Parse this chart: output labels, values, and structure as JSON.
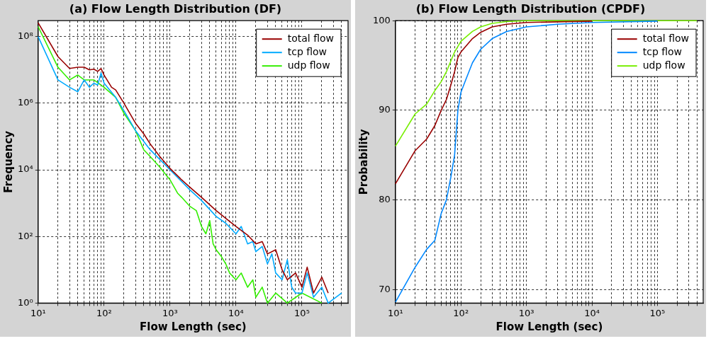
{
  "chart_data": [
    {
      "type": "line",
      "title": "(a) Flow Length Distribution (DF)",
      "xlabel": "Flow Length (sec)",
      "ylabel": "Frequency",
      "log": "xy",
      "grid": true,
      "legend": "top right",
      "marker": "none",
      "line_style": "solid",
      "xlim": [
        10,
        500000
      ],
      "ylim": [
        1,
        300000000
      ],
      "xticks": [
        {
          "value": 10,
          "label": "10¹"
        },
        {
          "value": 20,
          "label": null
        },
        {
          "value": 30,
          "label": null
        },
        {
          "value": 40,
          "label": null
        },
        {
          "value": 50,
          "label": null
        },
        {
          "value": 60,
          "label": null
        },
        {
          "value": 70,
          "label": null
        },
        {
          "value": 80,
          "label": null
        },
        {
          "value": 90,
          "label": null
        },
        {
          "value": 100,
          "label": "10²"
        },
        {
          "value": 200,
          "label": null
        },
        {
          "value": 300,
          "label": null
        },
        {
          "value": 400,
          "label": null
        },
        {
          "value": 500,
          "label": null
        },
        {
          "value": 600,
          "label": null
        },
        {
          "value": 700,
          "label": null
        },
        {
          "value": 800,
          "label": null
        },
        {
          "value": 900,
          "label": null
        },
        {
          "value": 1000,
          "label": "10³"
        },
        {
          "value": 2000,
          "label": null
        },
        {
          "value": 3000,
          "label": null
        },
        {
          "value": 4000,
          "label": null
        },
        {
          "value": 5000,
          "label": null
        },
        {
          "value": 6000,
          "label": null
        },
        {
          "value": 7000,
          "label": null
        },
        {
          "value": 8000,
          "label": null
        },
        {
          "value": 9000,
          "label": null
        },
        {
          "value": 10000,
          "label": "10⁴"
        },
        {
          "value": 20000,
          "label": null
        },
        {
          "value": 30000,
          "label": null
        },
        {
          "value": 40000,
          "label": null
        },
        {
          "value": 50000,
          "label": null
        },
        {
          "value": 60000,
          "label": null
        },
        {
          "value": 70000,
          "label": null
        },
        {
          "value": 80000,
          "label": null
        },
        {
          "value": 90000,
          "label": null
        },
        {
          "value": 100000,
          "label": "10⁵"
        },
        {
          "value": 200000,
          "label": null
        },
        {
          "value": 300000,
          "label": null
        },
        {
          "value": 400000,
          "label": null
        }
      ],
      "yticks": [
        {
          "value": 1,
          "label": "10⁰"
        },
        {
          "value": 100,
          "label": "10²"
        },
        {
          "value": 10000,
          "label": "10⁴"
        },
        {
          "value": 1000000,
          "label": "10⁶"
        },
        {
          "value": 100000000,
          "label": "10⁸"
        }
      ],
      "series": [
        {
          "name": "total flow",
          "color": "#990000",
          "x": [
            10,
            20,
            30,
            40,
            50,
            60,
            70,
            80,
            90,
            100,
            130,
            150,
            200,
            300,
            400,
            500,
            700,
            1000,
            1500,
            2000,
            3000,
            5000,
            7000,
            10000,
            15000,
            20000,
            25000,
            30000,
            40000,
            50000,
            60000,
            80000,
            100000,
            120000,
            150000,
            200000,
            250000
          ],
          "values": [
            260000000,
            25000000,
            11000000,
            12000000,
            12000000,
            10000000,
            10500000,
            9000000,
            11000000,
            7000000,
            3000000,
            2500000,
            1000000,
            250000,
            120000,
            60000,
            25000,
            11000,
            5000,
            3000,
            1500,
            600,
            350,
            200,
            110,
            60,
            70,
            30,
            40,
            10,
            5,
            8,
            3,
            12,
            2,
            6,
            2
          ]
        },
        {
          "name": "tcp flow",
          "color": "#00aaff",
          "x": [
            10,
            20,
            30,
            40,
            50,
            60,
            70,
            80,
            90,
            100,
            150,
            200,
            300,
            500,
            1000,
            2000,
            3000,
            5000,
            7000,
            10000,
            12000,
            15000,
            18000,
            20000,
            25000,
            30000,
            35000,
            40000,
            50000,
            60000,
            70000,
            80000,
            100000,
            120000,
            150000,
            200000,
            250000,
            400000
          ],
          "values": [
            100000000,
            5000000,
            3000000,
            2200000,
            5000000,
            3000000,
            4000000,
            3500000,
            8000000,
            4000000,
            1500000,
            600000,
            150000,
            40000,
            10000,
            2500,
            1200,
            400,
            250,
            120,
            200,
            60,
            70,
            35,
            50,
            15,
            30,
            8,
            5,
            20,
            3,
            2,
            2,
            8,
            1.5,
            3,
            1,
            2
          ]
        },
        {
          "name": "udp flow",
          "color": "#33ee00",
          "x": [
            10,
            20,
            30,
            40,
            50,
            70,
            100,
            150,
            200,
            300,
            400,
            500,
            700,
            1000,
            1300,
            1500,
            2000,
            2500,
            3000,
            3500,
            4000,
            4500,
            5000,
            6000,
            7000,
            8000,
            10000,
            12000,
            15000,
            18000,
            20000,
            25000,
            30000,
            40000,
            60000,
            100000,
            200000
          ],
          "values": [
            200000000,
            12000000,
            5000000,
            7000000,
            5000000,
            5000000,
            3000000,
            1500000,
            500000,
            150000,
            40000,
            25000,
            12000,
            5000,
            2000,
            1500,
            800,
            600,
            200,
            120,
            300,
            60,
            40,
            25,
            15,
            8,
            5,
            8,
            3,
            5,
            1.5,
            3,
            1,
            2,
            1,
            2,
            1
          ]
        }
      ]
    },
    {
      "type": "line",
      "title": "(b) Flow Length Distribution (CPDF)",
      "xlabel": "Flow Length (sec)",
      "ylabel": "Probability",
      "log": "x",
      "grid": true,
      "legend": "top right",
      "marker": "none",
      "line_style": "solid",
      "xlim": [
        10,
        500000
      ],
      "ylim": [
        68.5,
        100
      ],
      "xticks": [
        {
          "value": 10,
          "label": "10¹"
        },
        {
          "value": 20,
          "label": null
        },
        {
          "value": 30,
          "label": null
        },
        {
          "value": 40,
          "label": null
        },
        {
          "value": 50,
          "label": null
        },
        {
          "value": 60,
          "label": null
        },
        {
          "value": 70,
          "label": null
        },
        {
          "value": 80,
          "label": null
        },
        {
          "value": 90,
          "label": null
        },
        {
          "value": 100,
          "label": "10²"
        },
        {
          "value": 200,
          "label": null
        },
        {
          "value": 300,
          "label": null
        },
        {
          "value": 400,
          "label": null
        },
        {
          "value": 500,
          "label": null
        },
        {
          "value": 600,
          "label": null
        },
        {
          "value": 700,
          "label": null
        },
        {
          "value": 800,
          "label": null
        },
        {
          "value": 900,
          "label": null
        },
        {
          "value": 1000,
          "label": "10³"
        },
        {
          "value": 2000,
          "label": null
        },
        {
          "value": 3000,
          "label": null
        },
        {
          "value": 4000,
          "label": null
        },
        {
          "value": 5000,
          "label": null
        },
        {
          "value": 6000,
          "label": null
        },
        {
          "value": 7000,
          "label": null
        },
        {
          "value": 8000,
          "label": null
        },
        {
          "value": 9000,
          "label": null
        },
        {
          "value": 10000,
          "label": "10⁴"
        },
        {
          "value": 20000,
          "label": null
        },
        {
          "value": 30000,
          "label": null
        },
        {
          "value": 40000,
          "label": null
        },
        {
          "value": 50000,
          "label": null
        },
        {
          "value": 60000,
          "label": null
        },
        {
          "value": 70000,
          "label": null
        },
        {
          "value": 80000,
          "label": null
        },
        {
          "value": 90000,
          "label": null
        },
        {
          "value": 100000,
          "label": "10⁵"
        },
        {
          "value": 200000,
          "label": null
        },
        {
          "value": 300000,
          "label": null
        },
        {
          "value": 400000,
          "label": null
        }
      ],
      "yticks": [
        70,
        80,
        90,
        100
      ],
      "series": [
        {
          "name": "total flow",
          "color": "#990000",
          "x": [
            10,
            20,
            30,
            40,
            50,
            60,
            70,
            80,
            90,
            100,
            150,
            200,
            300,
            500,
            1000,
            10000
          ],
          "values": [
            81.8,
            85.5,
            86.8,
            88.3,
            90,
            91.2,
            92.8,
            94.3,
            95.9,
            96.5,
            98,
            98.7,
            99.3,
            99.6,
            99.8,
            99.95
          ]
        },
        {
          "name": "tcp flow",
          "color": "#0088ff",
          "x": [
            10,
            20,
            30,
            40,
            50,
            60,
            70,
            80,
            90,
            100,
            120,
            150,
            200,
            300,
            500,
            1000,
            3000,
            10000,
            100000
          ],
          "values": [
            68.6,
            72.5,
            74.5,
            75.5,
            78.5,
            80,
            82.5,
            85,
            90,
            92,
            93.5,
            95.3,
            96.8,
            98,
            98.8,
            99.3,
            99.6,
            99.8,
            99.95
          ]
        },
        {
          "name": "udp flow",
          "color": "#77ee00",
          "x": [
            10,
            20,
            30,
            40,
            50,
            60,
            80,
            100,
            150,
            200,
            300,
            500,
            1000,
            400000
          ],
          "values": [
            86,
            89.6,
            90.7,
            92.2,
            93.2,
            94.3,
            96.5,
            97.7,
            98.8,
            99.3,
            99.7,
            99.9,
            100,
            100
          ]
        }
      ]
    }
  ]
}
